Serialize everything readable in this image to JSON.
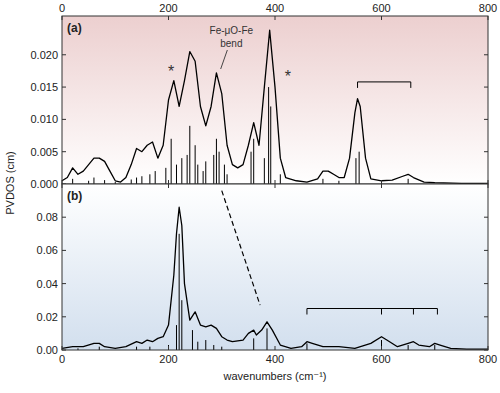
{
  "chart_data": [
    {
      "type": "line",
      "panel_label": "(a)",
      "ylabel": "PVDOS (cm)",
      "xlim": [
        0,
        800
      ],
      "xticks": [
        0,
        200,
        400,
        600,
        800
      ],
      "ylim": [
        0,
        0.026
      ],
      "yticks": [
        {
          "value": 0,
          "label": "0.000"
        },
        {
          "value": 0.005,
          "label": "0.005"
        },
        {
          "value": 0.01,
          "label": "0.010"
        },
        {
          "value": 0.015,
          "label": "0.015"
        },
        {
          "value": 0.02,
          "label": "0.020"
        }
      ],
      "series": [
        {
          "type": "line",
          "color": "#000000",
          "line_style": "solid",
          "x": [
            0,
            10,
            20,
            30,
            40,
            50,
            60,
            70,
            80,
            90,
            100,
            110,
            120,
            130,
            140,
            150,
            160,
            170,
            180,
            190,
            200,
            210,
            220,
            230,
            240,
            250,
            260,
            270,
            280,
            290,
            300,
            310,
            320,
            330,
            340,
            350,
            360,
            370,
            380,
            390,
            400,
            410,
            420,
            440,
            460,
            480,
            490,
            500,
            510,
            520,
            530,
            540,
            550,
            555,
            560,
            570,
            580,
            600,
            620,
            640,
            650,
            660,
            680,
            700,
            750,
            800
          ],
          "values": [
            0.0005,
            0.001,
            0.0025,
            0.0015,
            0.002,
            0.003,
            0.004,
            0.004,
            0.0035,
            0.002,
            0.0005,
            0.0003,
            0.001,
            0.003,
            0.0055,
            0.005,
            0.006,
            0.0065,
            0.004,
            0.006,
            0.013,
            0.016,
            0.012,
            0.016,
            0.0205,
            0.019,
            0.012,
            0.009,
            0.012,
            0.0172,
            0.014,
            0.006,
            0.003,
            0.0025,
            0.003,
            0.006,
            0.0095,
            0.006,
            0.015,
            0.0238,
            0.015,
            0.004,
            0.001,
            0.0005,
            0.0003,
            0.0008,
            0.002,
            0.002,
            0.0015,
            0.001,
            0.001,
            0.004,
            0.011,
            0.0132,
            0.012,
            0.004,
            0.0008,
            0.0005,
            0.0006,
            0.0012,
            0.0015,
            0.001,
            0.0003,
            0.0002,
            0.0001,
            0.0001
          ]
        },
        {
          "type": "stick",
          "color": "#000000",
          "x": [
            20,
            50,
            60,
            80,
            100,
            130,
            140,
            150,
            165,
            175,
            195,
            205,
            215,
            225,
            235,
            240,
            250,
            255,
            265,
            270,
            285,
            290,
            295,
            305,
            310,
            355,
            360,
            380,
            388,
            392,
            410,
            490,
            520,
            552,
            558,
            600,
            650
          ],
          "values": [
            0.0008,
            0.0005,
            0.001,
            0.0006,
            0.0003,
            0.0007,
            0.001,
            0.0012,
            0.0015,
            0.002,
            0.0025,
            0.007,
            0.003,
            0.004,
            0.0045,
            0.009,
            0.006,
            0.003,
            0.002,
            0.0035,
            0.0045,
            0.007,
            0.005,
            0.003,
            0.0015,
            0.005,
            0.007,
            0.004,
            0.015,
            0.012,
            0.0015,
            0.0008,
            0.0005,
            0.004,
            0.005,
            0.0005,
            0.0008
          ]
        }
      ],
      "annotations": [
        {
          "text": "*",
          "x": 205,
          "y": 0.0166
        },
        {
          "text": "*",
          "x": 424,
          "y": 0.0158
        },
        {
          "text": "Fe-μO-Fe",
          "x": 318,
          "y": 0.0232
        },
        {
          "text": "bend",
          "x": 318,
          "y": 0.0212,
          "points_to": [
            298,
            0.0178
          ]
        }
      ],
      "brackets": [
        {
          "x": [
            555,
            655
          ],
          "y": 0.0158
        }
      ]
    },
    {
      "type": "line",
      "panel_label": "(b)",
      "xlabel": "wavenumbers (cm⁻¹)",
      "xlim": [
        0,
        800
      ],
      "xticks": [
        0,
        200,
        400,
        600,
        800
      ],
      "ylim": [
        0,
        0.1
      ],
      "yticks": [
        {
          "value": 0,
          "label": "0.00"
        },
        {
          "value": 0.02,
          "label": "0.02"
        },
        {
          "value": 0.04,
          "label": "0.04"
        },
        {
          "value": 0.06,
          "label": "0.06"
        },
        {
          "value": 0.08,
          "label": "0.08"
        }
      ],
      "series": [
        {
          "type": "line",
          "color": "#000000",
          "line_style": "solid",
          "x": [
            0,
            20,
            40,
            60,
            70,
            80,
            100,
            120,
            140,
            150,
            160,
            170,
            180,
            190,
            200,
            210,
            215,
            220,
            225,
            230,
            240,
            250,
            260,
            270,
            280,
            290,
            300,
            310,
            320,
            340,
            350,
            360,
            365,
            375,
            385,
            395,
            410,
            430,
            450,
            460,
            470,
            490,
            520,
            550,
            580,
            600,
            610,
            630,
            650,
            660,
            670,
            690,
            700,
            710,
            730,
            760,
            800
          ],
          "values": [
            0.001,
            0.002,
            0.002,
            0.004,
            0.004,
            0.002,
            0.001,
            0.002,
            0.005,
            0.004,
            0.006,
            0.005,
            0.007,
            0.008,
            0.015,
            0.045,
            0.07,
            0.086,
            0.075,
            0.04,
            0.018,
            0.023,
            0.015,
            0.014,
            0.015,
            0.013,
            0.008,
            0.006,
            0.005,
            0.006,
            0.01,
            0.012,
            0.009,
            0.012,
            0.017,
            0.012,
            0.003,
            0.001,
            0.002,
            0.005,
            0.004,
            0.002,
            0.002,
            0.001,
            0.004,
            0.008,
            0.006,
            0.002,
            0.004,
            0.005,
            0.003,
            0.002,
            0.004,
            0.003,
            0.001,
            0.0005,
            0.0005
          ]
        },
        {
          "type": "stick",
          "color": "#000000",
          "x": [
            30,
            70,
            140,
            165,
            200,
            215,
            220,
            225,
            245,
            255,
            270,
            285,
            300,
            360,
            385,
            460,
            600,
            650,
            700
          ],
          "values": [
            0.001,
            0.002,
            0.002,
            0.002,
            0.003,
            0.015,
            0.07,
            0.03,
            0.012,
            0.005,
            0.006,
            0.003,
            0.002,
            0.007,
            0.013,
            0.004,
            0.006,
            0.003,
            0.003
          ]
        }
      ],
      "brackets": [
        {
          "x": [
            460,
            600,
            660,
            705
          ],
          "y": 0.025
        }
      ],
      "connector": {
        "x": [
          300,
          372
        ],
        "y": [
          0.096,
          0.027
        ],
        "line_style": "dashed"
      }
    }
  ]
}
